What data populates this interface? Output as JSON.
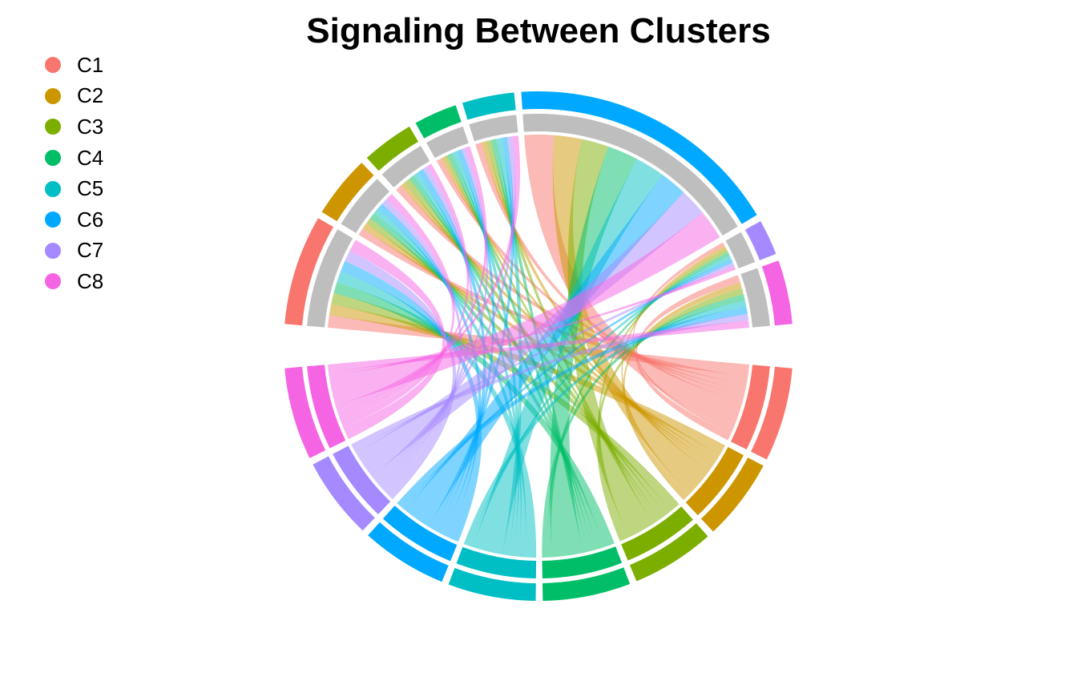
{
  "chart_data": {
    "type": "chord",
    "title": "Signaling Between Clusters",
    "legend": {
      "placement": "top-left",
      "entries": [
        {
          "label": "C1",
          "color": "#F8766D"
        },
        {
          "label": "C2",
          "color": "#CD9600"
        },
        {
          "label": "C3",
          "color": "#7CAE00"
        },
        {
          "label": "C4",
          "color": "#00BE67"
        },
        {
          "label": "C5",
          "color": "#00BFC4"
        },
        {
          "label": "C6",
          "color": "#00A9FF"
        },
        {
          "label": "C7",
          "color": "#A58AFF"
        },
        {
          "label": "C8",
          "color": "#F564E3"
        }
      ]
    },
    "sources": [
      "C1",
      "C2",
      "C3",
      "C4",
      "C5",
      "C6",
      "C7",
      "C8"
    ],
    "targets": [
      "C1",
      "C2",
      "C3",
      "C4",
      "C5",
      "C6",
      "C7",
      "C8"
    ],
    "matrix": [
      [
        1.0,
        0.6,
        0.5,
        0.4,
        0.5,
        2.4,
        0.3,
        0.6
      ],
      [
        0.9,
        0.5,
        0.4,
        0.3,
        0.4,
        2.2,
        0.3,
        0.5
      ],
      [
        0.9,
        0.5,
        0.5,
        0.3,
        0.4,
        2.2,
        0.3,
        0.5
      ],
      [
        0.9,
        0.5,
        0.4,
        0.4,
        0.4,
        2.5,
        0.3,
        0.5
      ],
      [
        0.9,
        0.5,
        0.4,
        0.4,
        0.5,
        2.4,
        0.3,
        0.5
      ],
      [
        0.9,
        0.5,
        0.5,
        0.4,
        0.4,
        2.2,
        0.3,
        0.6
      ],
      [
        0.9,
        0.5,
        0.4,
        0.3,
        0.4,
        2.2,
        0.3,
        0.5
      ],
      [
        1.0,
        0.6,
        0.4,
        0.4,
        0.5,
        2.4,
        0.3,
        0.6
      ]
    ],
    "grid": false
  }
}
